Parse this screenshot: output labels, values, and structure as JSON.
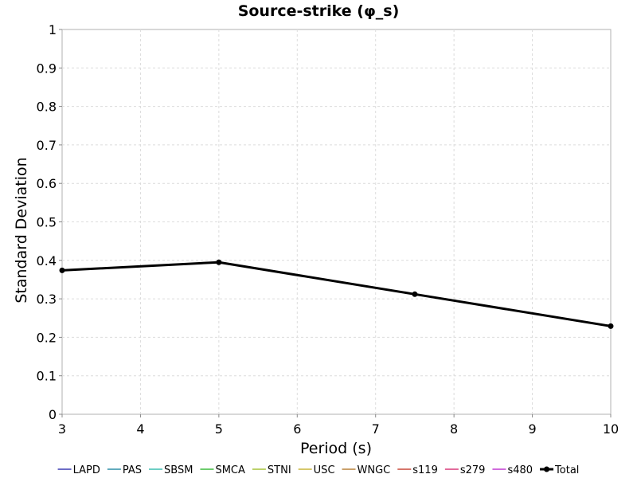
{
  "chart_data": {
    "type": "line",
    "title": "Source-strike (φ_s)",
    "xlabel": "Period (s)",
    "ylabel": "Standard Deviation",
    "xlim": [
      3,
      10
    ],
    "ylim": [
      0,
      1
    ],
    "xticks": [
      "3",
      "4",
      "5",
      "6",
      "7",
      "8",
      "9",
      "10"
    ],
    "yticks": [
      "0",
      "0.1",
      "0.2",
      "0.3",
      "0.4",
      "0.5",
      "0.6",
      "0.7",
      "0.8",
      "0.9",
      "1"
    ],
    "grid": true,
    "legend_position": "bottom",
    "series": [
      {
        "name": "LAPD",
        "color": "#3b3bb3",
        "x": [],
        "y": []
      },
      {
        "name": "PAS",
        "color": "#2e8fa8",
        "x": [],
        "y": []
      },
      {
        "name": "SBSM",
        "color": "#3dbdb0",
        "x": [],
        "y": []
      },
      {
        "name": "SMCA",
        "color": "#3dbb3d",
        "x": [],
        "y": []
      },
      {
        "name": "STNI",
        "color": "#a5c23a",
        "x": [],
        "y": []
      },
      {
        "name": "USC",
        "color": "#c8b53a",
        "x": [],
        "y": []
      },
      {
        "name": "WNGC",
        "color": "#b8823a",
        "x": [],
        "y": []
      },
      {
        "name": "s119",
        "color": "#c8483a",
        "x": [],
        "y": []
      },
      {
        "name": "s279",
        "color": "#d83a7a",
        "x": [],
        "y": []
      },
      {
        "name": "s480",
        "color": "#c03ad0",
        "x": [],
        "y": []
      },
      {
        "name": "Total",
        "color": "#000000",
        "x": [
          3,
          5,
          7.5,
          10
        ],
        "y": [
          0.374,
          0.395,
          0.312,
          0.229
        ]
      }
    ]
  }
}
